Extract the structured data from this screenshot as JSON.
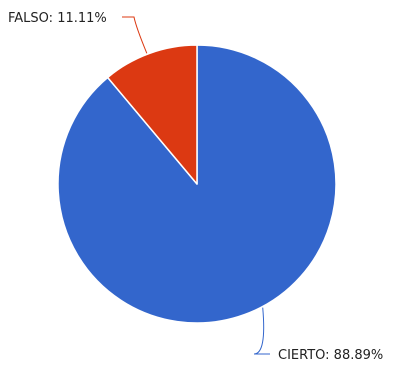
{
  "chart_data": {
    "type": "pie",
    "title": "",
    "legend": "none",
    "start_angle_deg": 0,
    "direction": "clockwise",
    "slices": [
      {
        "label": "CIERTO",
        "value": 88.89,
        "display": "CIERTO: 88.89%",
        "color": "#3366cc"
      },
      {
        "label": "FALSO",
        "value": 11.11,
        "display": "FALSO: 11.11%",
        "color": "#dc3912"
      }
    ]
  }
}
